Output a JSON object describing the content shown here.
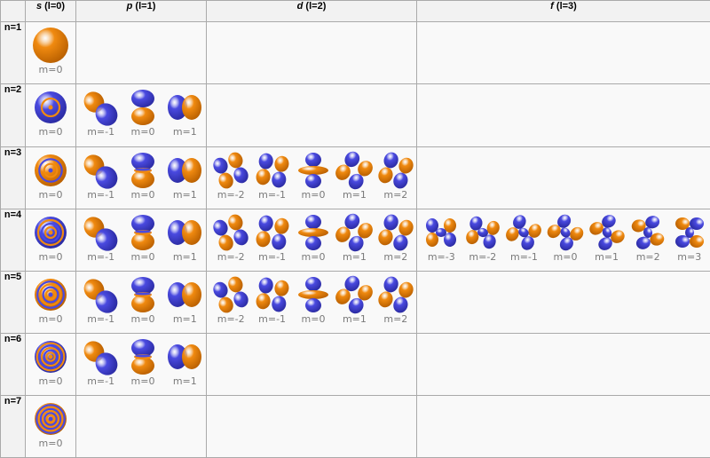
{
  "headers": {
    "corner": "",
    "s": {
      "sym": "s",
      "label": " (l=0)"
    },
    "p": {
      "sym": "p",
      "label": " (l=1)"
    },
    "d": {
      "sym": "d",
      "label": " (l=2)"
    },
    "f": {
      "sym": "f",
      "label": " (l=3)"
    }
  },
  "colors": {
    "orange": "#f08a10",
    "blue": "#4a4ae0"
  },
  "rows": [
    {
      "n": "n=1",
      "s": [
        {
          "m": "m=0",
          "icon": "orbital-s-1"
        }
      ],
      "p": [],
      "d": [],
      "f": []
    },
    {
      "n": "n=2",
      "s": [
        {
          "m": "m=0",
          "icon": "orbital-s-2"
        }
      ],
      "p": [
        {
          "m": "m=-1"
        },
        {
          "m": "m=0"
        },
        {
          "m": "m=1"
        }
      ],
      "d": [],
      "f": []
    },
    {
      "n": "n=3",
      "s": [
        {
          "m": "m=0"
        }
      ],
      "p": [
        {
          "m": "m=-1"
        },
        {
          "m": "m=0"
        },
        {
          "m": "m=1"
        }
      ],
      "d": [
        {
          "m": "m=-2"
        },
        {
          "m": "m=-1"
        },
        {
          "m": "m=0"
        },
        {
          "m": "m=1"
        },
        {
          "m": "m=2"
        }
      ],
      "f": []
    },
    {
      "n": "n=4",
      "s": [
        {
          "m": "m=0"
        }
      ],
      "p": [
        {
          "m": "m=-1"
        },
        {
          "m": "m=0"
        },
        {
          "m": "m=1"
        }
      ],
      "d": [
        {
          "m": "m=-2"
        },
        {
          "m": "m=-1"
        },
        {
          "m": "m=0"
        },
        {
          "m": "m=1"
        },
        {
          "m": "m=2"
        }
      ],
      "f": [
        {
          "m": "m=-3"
        },
        {
          "m": "m=-2"
        },
        {
          "m": "m=-1"
        },
        {
          "m": "m=0"
        },
        {
          "m": "m=1"
        },
        {
          "m": "m=2"
        },
        {
          "m": "m=3"
        }
      ]
    },
    {
      "n": "n=5",
      "s": [
        {
          "m": "m=0"
        }
      ],
      "p": [
        {
          "m": "m=-1"
        },
        {
          "m": "m=0"
        },
        {
          "m": "m=1"
        }
      ],
      "d": [
        {
          "m": "m=-2"
        },
        {
          "m": "m=-1"
        },
        {
          "m": "m=0"
        },
        {
          "m": "m=1"
        },
        {
          "m": "m=2"
        }
      ],
      "f": []
    },
    {
      "n": "n=6",
      "s": [
        {
          "m": "m=0"
        }
      ],
      "p": [
        {
          "m": "m=-1"
        },
        {
          "m": "m=0"
        },
        {
          "m": "m=1"
        }
      ],
      "d": [],
      "f": []
    },
    {
      "n": "n=7",
      "s": [
        {
          "m": "m=0"
        }
      ],
      "p": [],
      "d": [],
      "f": []
    }
  ]
}
